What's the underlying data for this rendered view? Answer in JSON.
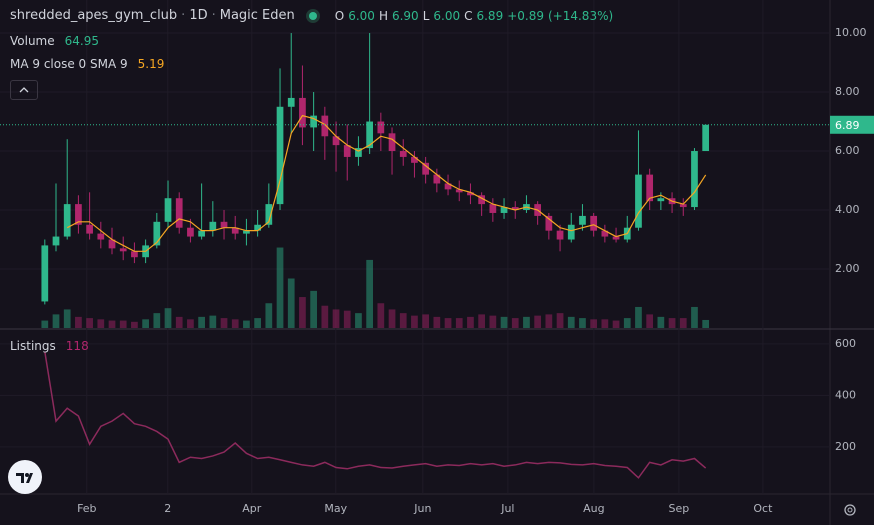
{
  "header": {
    "symbol": "shredded_apes_gym_club",
    "interval": "1D",
    "source": "Magic Eden"
  },
  "chart_data": [
    {
      "type": "candlestick",
      "ohlc_legend": {
        "labels": [
          "O",
          "H",
          "L",
          "C"
        ],
        "values": [
          6.0,
          6.9,
          6.0,
          6.89
        ],
        "value_labels": [
          "6.00",
          "6.90",
          "6.00",
          "6.89"
        ],
        "change": {
          "value": 0.89,
          "label": "+0.89"
        },
        "change_pct": {
          "value": 14.83,
          "label": "(+14.83%)"
        }
      },
      "volume_label": "Volume",
      "ma_label": "MA 9 close 0 SMA 9",
      "open": [
        0.9,
        2.8,
        3.1,
        4.2,
        3.5,
        3.2,
        3.0,
        2.7,
        2.6,
        2.4,
        2.8,
        3.6,
        4.4,
        3.4,
        3.1,
        3.3,
        3.6,
        3.4,
        3.2,
        3.3,
        3.5,
        4.2,
        7.5,
        7.8,
        6.8,
        7.2,
        6.5,
        6.2,
        5.8,
        6.1,
        7.0,
        6.6,
        6.0,
        5.8,
        5.6,
        5.2,
        4.9,
        4.7,
        4.6,
        4.5,
        4.2,
        3.9,
        4.1,
        4.0,
        4.2,
        3.8,
        3.3,
        3.0,
        3.5,
        3.8,
        3.3,
        3.1,
        3.0,
        3.4,
        5.2,
        4.3,
        4.4,
        4.2,
        4.1,
        6.0
      ],
      "high": [
        3.0,
        4.9,
        6.4,
        4.5,
        4.6,
        3.6,
        3.4,
        3.1,
        2.9,
        3.0,
        3.9,
        5.0,
        4.6,
        3.7,
        4.9,
        4.3,
        4.0,
        3.8,
        3.7,
        4.0,
        4.9,
        8.8,
        10.0,
        8.9,
        8.0,
        7.5,
        7.0,
        6.9,
        6.5,
        10.0,
        7.3,
        6.8,
        6.4,
        6.0,
        5.8,
        5.4,
        5.2,
        5.0,
        4.9,
        4.6,
        4.4,
        4.4,
        4.3,
        4.5,
        4.3,
        3.9,
        3.5,
        3.9,
        4.2,
        3.9,
        3.5,
        3.4,
        3.8,
        6.7,
        5.4,
        4.6,
        4.6,
        4.4,
        6.1,
        6.9
      ],
      "low": [
        0.8,
        2.6,
        3.0,
        3.2,
        3.0,
        2.7,
        2.5,
        2.3,
        2.2,
        2.2,
        2.7,
        3.4,
        3.2,
        2.9,
        3.0,
        3.1,
        3.0,
        3.0,
        2.8,
        3.1,
        3.4,
        4.0,
        6.6,
        6.2,
        6.0,
        5.7,
        5.3,
        5.0,
        5.5,
        5.9,
        6.0,
        5.2,
        5.5,
        5.1,
        4.9,
        4.6,
        4.5,
        4.3,
        4.2,
        3.8,
        3.6,
        3.7,
        3.7,
        3.9,
        3.5,
        3.0,
        2.6,
        2.9,
        3.3,
        3.1,
        2.9,
        2.9,
        2.9,
        3.3,
        4.0,
        4.0,
        3.9,
        3.8,
        4.0,
        6.0
      ],
      "close": [
        2.8,
        3.1,
        4.2,
        3.5,
        3.2,
        3.0,
        2.7,
        2.6,
        2.4,
        2.8,
        3.6,
        4.4,
        3.4,
        3.1,
        3.3,
        3.6,
        3.4,
        3.2,
        3.3,
        3.5,
        4.2,
        7.5,
        7.8,
        6.8,
        7.2,
        6.5,
        6.2,
        5.8,
        6.1,
        7.0,
        6.6,
        6.0,
        5.8,
        5.6,
        5.2,
        4.9,
        4.7,
        4.6,
        4.5,
        4.2,
        3.9,
        4.1,
        4.0,
        4.2,
        3.8,
        3.3,
        3.0,
        3.5,
        3.8,
        3.3,
        3.1,
        3.0,
        3.4,
        5.2,
        4.3,
        4.4,
        4.2,
        4.1,
        6.0,
        6.89
      ],
      "volume": [
        60,
        110,
        150,
        90,
        80,
        70,
        60,
        60,
        50,
        70,
        120,
        160,
        90,
        70,
        90,
        100,
        80,
        70,
        60,
        80,
        200,
        650,
        400,
        250,
        300,
        180,
        150,
        140,
        120,
        550,
        200,
        150,
        120,
        100,
        110,
        90,
        80,
        80,
        90,
        110,
        100,
        90,
        80,
        90,
        100,
        110,
        120,
        90,
        80,
        70,
        70,
        60,
        80,
        170,
        110,
        90,
        80,
        80,
        170,
        64.95
      ],
      "ma": [
        null,
        null,
        3.4,
        3.6,
        3.6,
        3.3,
        3.0,
        2.8,
        2.6,
        2.6,
        2.9,
        3.4,
        3.7,
        3.6,
        3.3,
        3.3,
        3.4,
        3.4,
        3.3,
        3.3,
        3.6,
        5.0,
        6.6,
        7.2,
        7.1,
        6.9,
        6.5,
        6.2,
        6.0,
        6.2,
        6.5,
        6.4,
        6.1,
        5.8,
        5.5,
        5.2,
        4.9,
        4.7,
        4.6,
        4.4,
        4.2,
        4.1,
        4.0,
        4.1,
        4.0,
        3.7,
        3.4,
        3.3,
        3.4,
        3.5,
        3.3,
        3.1,
        3.2,
        3.9,
        4.4,
        4.5,
        4.3,
        4.2,
        4.6,
        5.19
      ],
      "up_color": "#2fb88c",
      "down_color": "#b0266c",
      "ma_color": "#f5a623",
      "xlim": [
        -4,
        70.1
      ],
      "xticks": [
        {
          "value": 3.75,
          "label": "Feb"
        },
        {
          "value": 10.98,
          "label": "2"
        },
        {
          "value": 18.48,
          "label": "Apr"
        },
        {
          "value": 25.98,
          "label": "May"
        },
        {
          "value": 33.75,
          "label": "Jun"
        },
        {
          "value": 41.34,
          "label": "Jul"
        },
        {
          "value": 49.02,
          "label": "Aug"
        },
        {
          "value": 56.61,
          "label": "Sep"
        },
        {
          "value": 64.11,
          "label": "Oct"
        }
      ],
      "ylim": [
        0,
        11.12
      ],
      "yticks": [
        {
          "value": 2,
          "label": "2.00"
        },
        {
          "value": 4,
          "label": "4.00"
        },
        {
          "value": 6,
          "label": "6.00"
        },
        {
          "value": 8,
          "label": "8.00"
        },
        {
          "value": 10,
          "label": "10.00"
        }
      ],
      "volume_ylim": [
        0,
        2650
      ],
      "last_price": {
        "value": 6.89,
        "label": "6.89"
      },
      "grid": true
    },
    {
      "type": "line",
      "series": [
        {
          "name": "Listings",
          "color": "#8c2a5c",
          "values": [
            570,
            300,
            350,
            320,
            210,
            280,
            300,
            330,
            290,
            280,
            260,
            230,
            140,
            160,
            155,
            165,
            180,
            215,
            175,
            155,
            160,
            150,
            140,
            130,
            125,
            140,
            120,
            115,
            125,
            130,
            120,
            118,
            125,
            130,
            135,
            125,
            130,
            128,
            135,
            130,
            135,
            125,
            130,
            140,
            135,
            140,
            138,
            132,
            130,
            135,
            128,
            125,
            120,
            80,
            140,
            130,
            150,
            145,
            155,
            118
          ]
        }
      ],
      "xlim": [
        -4,
        70.1
      ],
      "ylim": [
        21,
        654
      ],
      "yticks": [
        200,
        400,
        600
      ],
      "grid": true
    }
  ]
}
